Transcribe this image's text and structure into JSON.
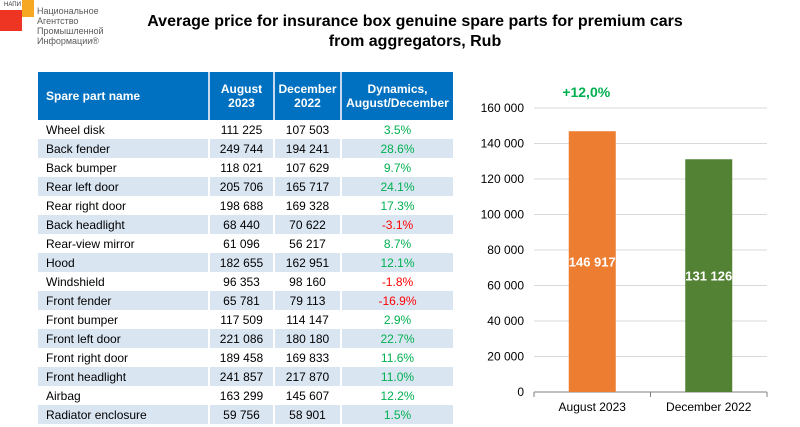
{
  "logo": {
    "small_label": "НАПИ",
    "text_lines": [
      "Национальное",
      "Агентство",
      "Промышленной",
      "Информации®"
    ]
  },
  "title": {
    "line1": "Average price for insurance box genuine spare parts for premium cars",
    "line2": "from aggregators, Rub"
  },
  "colors": {
    "header_blue": "#0070c0",
    "row_alt": "#dae5f2",
    "positive": "#00b050",
    "negative": "#ff0000",
    "bar_aug": "#ed7d31",
    "bar_dec": "#548235"
  },
  "table": {
    "headers": {
      "name": "Spare part name",
      "aug_line1": "August",
      "aug_line2": "2023",
      "dec_line1": "December",
      "dec_line2": "2022",
      "dyn_line1": "Dynamics,",
      "dyn_line2": "August/December"
    },
    "rows": [
      {
        "name": "Wheel disk",
        "aug": "111 225",
        "dec": "107 503",
        "dyn": "3.5%",
        "sign": "pos"
      },
      {
        "name": "Back fender",
        "aug": "249 744",
        "dec": "194 241",
        "dyn": "28.6%",
        "sign": "pos"
      },
      {
        "name": "Back bumper",
        "aug": "118 021",
        "dec": "107 629",
        "dyn": "9.7%",
        "sign": "pos"
      },
      {
        "name": "Rear left door",
        "aug": "205 706",
        "dec": "165 717",
        "dyn": "24.1%",
        "sign": "pos"
      },
      {
        "name": "Rear right door",
        "aug": "198 688",
        "dec": "169 328",
        "dyn": "17.3%",
        "sign": "pos"
      },
      {
        "name": "Back headlight",
        "aug": "68 440",
        "dec": "70 622",
        "dyn": "-3.1%",
        "sign": "neg"
      },
      {
        "name": "Rear-view mirror",
        "aug": "61 096",
        "dec": "56 217",
        "dyn": "8.7%",
        "sign": "pos"
      },
      {
        "name": "Hood",
        "aug": "182 655",
        "dec": "162 951",
        "dyn": "12.1%",
        "sign": "pos"
      },
      {
        "name": "Windshield",
        "aug": "96 353",
        "dec": "98 160",
        "dyn": "-1.8%",
        "sign": "neg"
      },
      {
        "name": "Front fender",
        "aug": "65 781",
        "dec": "79 113",
        "dyn": "-16.9%",
        "sign": "neg"
      },
      {
        "name": "Front bumper",
        "aug": "117 509",
        "dec": "114 147",
        "dyn": "2.9%",
        "sign": "pos"
      },
      {
        "name": "Front left door",
        "aug": "221 086",
        "dec": "180 180",
        "dyn": "22.7%",
        "sign": "pos"
      },
      {
        "name": "Front right door",
        "aug": "189 458",
        "dec": "169 833",
        "dyn": "11.6%",
        "sign": "pos"
      },
      {
        "name": "Front headlight",
        "aug": "241 857",
        "dec": "217 870",
        "dyn": "11.0%",
        "sign": "pos"
      },
      {
        "name": "Airbag",
        "aug": "163 299",
        "dec": "145 607",
        "dyn": "12.2%",
        "sign": "pos"
      },
      {
        "name": "Radiator enclosure",
        "aug": "59 756",
        "dec": "58 901",
        "dyn": "1.5%",
        "sign": "pos"
      }
    ]
  },
  "chart_data": {
    "type": "bar",
    "title": "",
    "annotation": "+12,0%",
    "categories": [
      "August 2023",
      "December 2022"
    ],
    "values": [
      146917,
      131126
    ],
    "value_labels": [
      "146 917",
      "131 126"
    ],
    "colors": [
      "#ed7d31",
      "#548235"
    ],
    "xlabel": "",
    "ylabel": "",
    "ylim": [
      0,
      160000
    ],
    "yticks": [
      0,
      20000,
      40000,
      60000,
      80000,
      100000,
      120000,
      140000,
      160000
    ],
    "ytick_labels": [
      "0",
      "20 000",
      "40 000",
      "60 000",
      "80 000",
      "100 000",
      "120 000",
      "140 000",
      "160 000"
    ],
    "grid": true,
    "legend": "none"
  }
}
